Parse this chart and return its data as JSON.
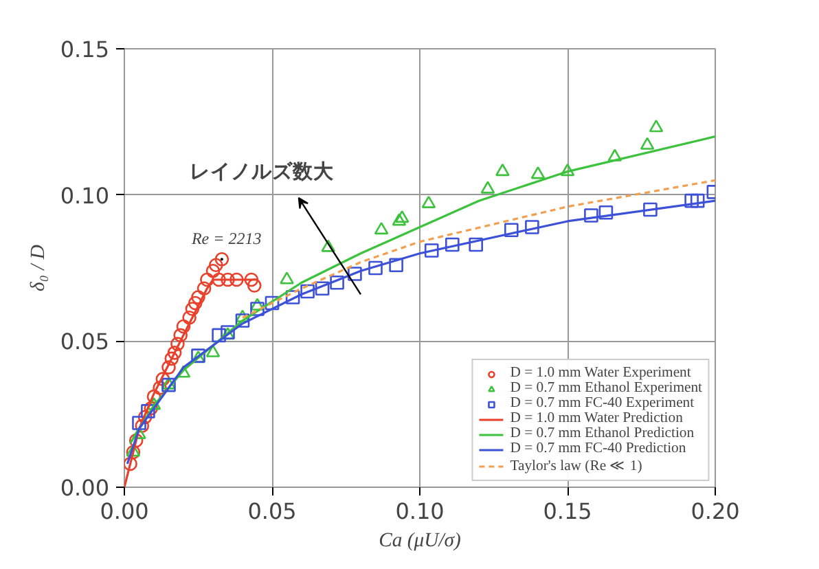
{
  "chart_data": {
    "type": "scatter",
    "xlabel": "Ca (μU/σ)",
    "ylabel": "δ₀ / D",
    "xlim": [
      0,
      0.2
    ],
    "ylim": [
      0,
      0.15
    ],
    "xticks": [
      {
        "value": 0,
        "label": "0.00"
      },
      0.05,
      {
        "value": 0.1,
        "label": "0.10"
      },
      0.15,
      {
        "value": 0.2,
        "label": "0.20"
      }
    ],
    "yticks": [
      {
        "value": 0,
        "label": "0.00"
      },
      0.05,
      {
        "value": 0.1,
        "label": "0.10"
      },
      0.15
    ],
    "grid": true,
    "legend": "bottom right",
    "annotations": [
      {
        "text": "Re = 2213",
        "x": 0.033,
        "y": 0.078
      },
      "レイノルズ数大"
    ],
    "series": [
      {
        "name": "D = 1.0 mm Water Experiment",
        "marker": "circle",
        "color": "#e8402a",
        "x": [
          0.002,
          0.003,
          0.004,
          0.006,
          0.007,
          0.009,
          0.01,
          0.012,
          0.013,
          0.015,
          0.016,
          0.017,
          0.018,
          0.019,
          0.02,
          0.022,
          0.023,
          0.024,
          0.025,
          0.027,
          0.028,
          0.03,
          0.031,
          0.033,
          0.032,
          0.035,
          0.038,
          0.043,
          0.044
        ],
        "values": [
          0.008,
          0.012,
          0.016,
          0.021,
          0.024,
          0.027,
          0.031,
          0.034,
          0.037,
          0.041,
          0.044,
          0.046,
          0.049,
          0.052,
          0.055,
          0.058,
          0.061,
          0.063,
          0.065,
          0.068,
          0.071,
          0.074,
          0.076,
          0.078,
          0.071,
          0.071,
          0.071,
          0.071,
          0.069
        ]
      },
      {
        "name": "D = 0.7 mm Ethanol Experiment",
        "marker": "triangle",
        "color": "#3cc23c",
        "x": [
          0.003,
          0.005,
          0.01,
          0.015,
          0.02,
          0.025,
          0.03,
          0.035,
          0.04,
          0.045,
          0.055,
          0.069,
          0.087,
          0.093,
          0.094,
          0.103,
          0.123,
          0.128,
          0.14,
          0.15,
          0.166,
          0.177,
          0.18
        ],
        "values": [
          0.012,
          0.018,
          0.028,
          0.035,
          0.039,
          0.044,
          0.046,
          0.052,
          0.058,
          0.062,
          0.071,
          0.082,
          0.088,
          0.091,
          0.092,
          0.097,
          0.102,
          0.108,
          0.107,
          0.108,
          0.113,
          0.117,
          0.123
        ]
      },
      {
        "name": "D = 0.7 mm FC-40 Experiment",
        "marker": "square",
        "color": "#3c50d8",
        "x": [
          0.005,
          0.008,
          0.015,
          0.025,
          0.032,
          0.035,
          0.04,
          0.045,
          0.05,
          0.057,
          0.062,
          0.067,
          0.072,
          0.078,
          0.085,
          0.092,
          0.104,
          0.111,
          0.119,
          0.131,
          0.138,
          0.158,
          0.163,
          0.178,
          0.192,
          0.194,
          0.1995
        ],
        "values": [
          0.022,
          0.026,
          0.035,
          0.045,
          0.052,
          0.053,
          0.057,
          0.061,
          0.063,
          0.065,
          0.067,
          0.068,
          0.07,
          0.073,
          0.075,
          0.076,
          0.081,
          0.083,
          0.083,
          0.088,
          0.089,
          0.093,
          0.094,
          0.095,
          0.098,
          0.098,
          0.101
        ]
      },
      {
        "name": "D = 1.0 mm Water Prediction",
        "type": "line",
        "line_style": "solid",
        "color": "#e8402a",
        "x": [
          0,
          0.005,
          0.01,
          0.02,
          0.028,
          0.03,
          0.045
        ],
        "values": [
          0,
          0.02,
          0.032,
          0.052,
          0.068,
          0.071,
          0.071
        ]
      },
      {
        "name": "D = 0.7 mm Ethanol Prediction",
        "type": "line",
        "line_style": "solid",
        "color": "#3cc23c",
        "x": [
          0.002,
          0.01,
          0.02,
          0.04,
          0.06,
          0.08,
          0.1,
          0.12,
          0.15,
          0.2
        ],
        "values": [
          0.015,
          0.028,
          0.04,
          0.057,
          0.07,
          0.08,
          0.089,
          0.098,
          0.108,
          0.12
        ]
      },
      {
        "name": "D = 0.7 mm FC-40 Prediction",
        "type": "line",
        "line_style": "solid",
        "color": "#3c50d8",
        "x": [
          0.001,
          0.005,
          0.02,
          0.04,
          0.06,
          0.08,
          0.1,
          0.15,
          0.2
        ],
        "values": [
          0.008,
          0.02,
          0.041,
          0.056,
          0.066,
          0.074,
          0.08,
          0.091,
          0.098
        ]
      },
      {
        "name": "Taylor's law (Re ≪ 1)",
        "type": "line",
        "line_style": "dashed",
        "color": "#f0a050",
        "x": [
          0.04,
          0.06,
          0.08,
          0.1,
          0.15,
          0.2
        ],
        "values": [
          0.058,
          0.068,
          0.077,
          0.084,
          0.096,
          0.105
        ]
      }
    ]
  }
}
